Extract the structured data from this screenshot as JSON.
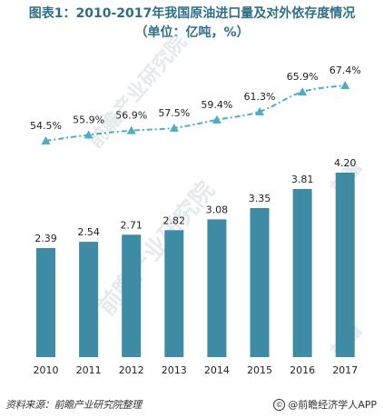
{
  "title": {
    "line1": "图表1：2010-2017年我国原油进口量及对外依存度情况",
    "line2": "（单位：亿吨，%）"
  },
  "chart_data": {
    "type": "bar",
    "categories": [
      "2010",
      "2011",
      "2012",
      "2013",
      "2014",
      "2015",
      "2016",
      "2017"
    ],
    "bar_series": {
      "name": "",
      "unit": "亿吨",
      "values": [
        2.39,
        2.54,
        2.71,
        2.82,
        3.08,
        3.35,
        3.81,
        4.2
      ],
      "labels": [
        "2.39",
        "2.54",
        "2.71",
        "2.82",
        "3.08",
        "3.35",
        "3.81",
        "4.20"
      ]
    },
    "line_series": {
      "name": "",
      "unit": "%",
      "values": [
        54.5,
        55.9,
        56.9,
        57.5,
        59.4,
        61.3,
        65.9,
        67.4
      ],
      "labels": [
        "54.5%",
        "55.9%",
        "56.9%",
        "57.5%",
        "59.4%",
        "61.3%",
        "65.9%",
        "67.4%"
      ]
    },
    "grid": false,
    "legend": "none",
    "colors": {
      "bar": "#3d8ba5",
      "line": "#4aaec4",
      "title": "#2e6f86"
    }
  },
  "watermarks": {
    "brand": "前瞻产业研究院",
    "logo": "前瞻"
  },
  "footer": {
    "source": "资料来源：前瞻产业研究院整理",
    "credit": "@前瞻经济学人APP"
  }
}
